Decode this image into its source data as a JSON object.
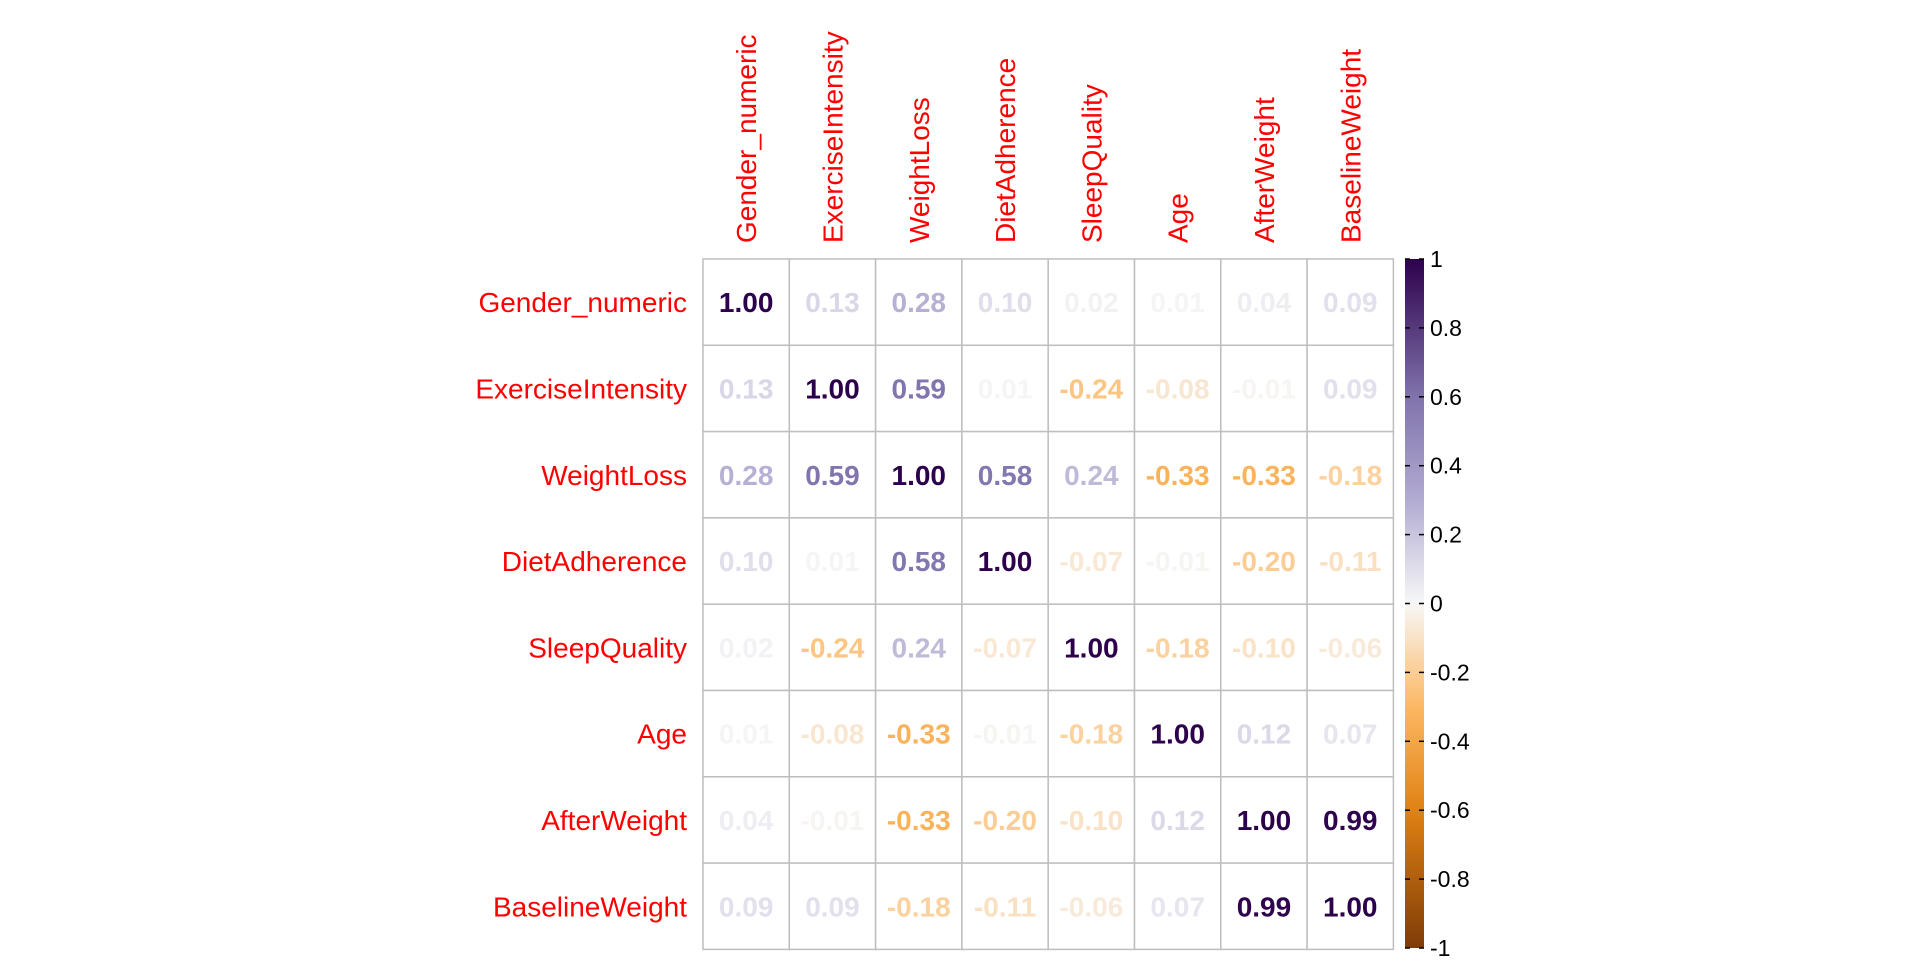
{
  "chart_data": {
    "type": "heatmap",
    "variables": [
      "Gender_numeric",
      "ExerciseIntensity",
      "WeightLoss",
      "DietAdherence",
      "SleepQuality",
      "Age",
      "AfterWeight",
      "BaselineWeight"
    ],
    "matrix": [
      [
        1.0,
        0.13,
        0.28,
        0.1,
        0.02,
        0.01,
        0.04,
        0.09
      ],
      [
        0.13,
        1.0,
        0.59,
        0.01,
        -0.24,
        -0.08,
        -0.01,
        0.09
      ],
      [
        0.28,
        0.59,
        1.0,
        0.58,
        0.24,
        -0.33,
        -0.33,
        -0.18
      ],
      [
        0.1,
        0.01,
        0.58,
        1.0,
        -0.07,
        -0.01,
        -0.2,
        -0.11
      ],
      [
        0.02,
        -0.24,
        0.24,
        -0.07,
        1.0,
        -0.18,
        -0.1,
        -0.06
      ],
      [
        0.01,
        -0.08,
        -0.33,
        -0.01,
        -0.18,
        1.0,
        0.12,
        0.07
      ],
      [
        0.04,
        -0.01,
        -0.33,
        -0.2,
        -0.1,
        0.12,
        1.0,
        0.99
      ],
      [
        0.09,
        0.09,
        -0.18,
        -0.11,
        -0.06,
        0.07,
        0.99,
        1.0
      ]
    ],
    "cell_labels": [
      [
        "1.00",
        "0.13",
        "0.28",
        "0.10",
        "0.02",
        "0.01",
        "0.04",
        "0.09"
      ],
      [
        "0.13",
        "1.00",
        "0.59",
        "0.01",
        "-0.24",
        "-0.08",
        "-0.01",
        "0.09"
      ],
      [
        "0.28",
        "0.59",
        "1.00",
        "0.58",
        "0.24",
        "-0.33",
        "-0.33",
        "-0.18"
      ],
      [
        "0.10",
        "0.01",
        "0.58",
        "1.00",
        "-0.07",
        "-0.01",
        "-0.20",
        "-0.11"
      ],
      [
        "0.02",
        "-0.24",
        "0.24",
        "-0.07",
        "1.00",
        "-0.18",
        "-0.10",
        "-0.06"
      ],
      [
        "0.01",
        "-0.08",
        "-0.33",
        "-0.01",
        "-0.18",
        "1.00",
        "0.12",
        "0.07"
      ],
      [
        "0.04",
        "-0.01",
        "-0.33",
        "-0.20",
        "-0.10",
        "0.12",
        "1.00",
        "0.99"
      ],
      [
        "0.09",
        "0.09",
        "-0.18",
        "-0.11",
        "-0.06",
        "0.07",
        "0.99",
        "1.00"
      ]
    ],
    "colorbar": {
      "range": [
        -1,
        1
      ],
      "tick_values": [
        1,
        0.8,
        0.6,
        0.4,
        0.2,
        0,
        -0.2,
        -0.4,
        -0.6,
        -0.8,
        -1
      ],
      "tick_labels": [
        "1",
        "0.8",
        "0.6",
        "0.4",
        "0.2",
        "0",
        "-0.2",
        "-0.4",
        "-0.6",
        "-0.8",
        "-1"
      ],
      "colors": {
        "negative_end": "#7F3B08",
        "negative_mid": "#E08214",
        "negative_light": "#FDB863",
        "zero": "#F7F7F7",
        "positive_light": "#B2ABD2",
        "positive_mid": "#8073AC",
        "positive_end": "#2D004B"
      }
    },
    "label_color": "#FF0000",
    "grid": true,
    "legend_position": "right",
    "title": "",
    "xlabel": "",
    "ylabel": ""
  }
}
